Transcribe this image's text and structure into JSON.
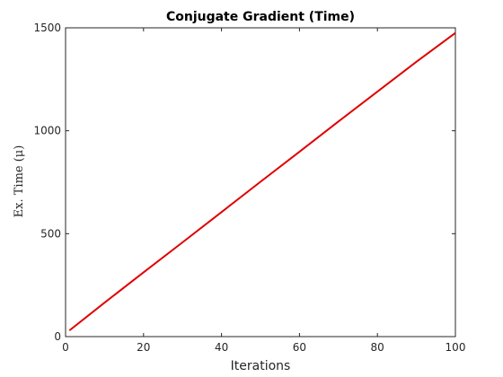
{
  "chart_data": {
    "type": "line",
    "title": "Conjugate Gradient (Time)",
    "xlabel": "Iterations",
    "ylabel": "Ex. Time (μ)",
    "xlim": [
      0,
      100
    ],
    "ylim": [
      0,
      1500
    ],
    "xticks": [
      0,
      20,
      40,
      60,
      80,
      100
    ],
    "yticks": [
      0,
      500,
      1000,
      1500
    ],
    "grid": false,
    "colors": {
      "series": "#e00000",
      "axis": "#262626"
    },
    "series": [
      {
        "x": [
          1,
          10,
          20,
          30,
          40,
          50,
          60,
          70,
          80,
          90,
          100
        ],
        "values": [
          30,
          165,
          312,
          458,
          605,
          752,
          898,
          1045,
          1190,
          1335,
          1475
        ]
      }
    ]
  }
}
